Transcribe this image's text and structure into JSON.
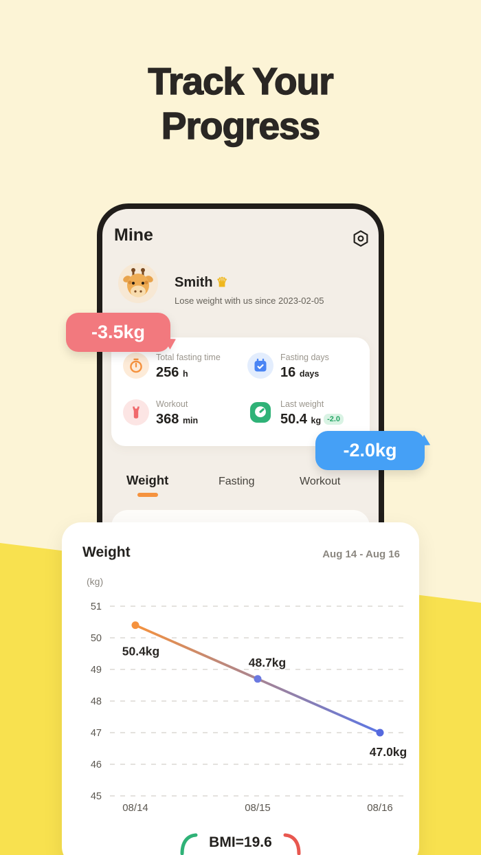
{
  "hero": {
    "title_line1": "Track Your",
    "title_line2": "Progress"
  },
  "phone": {
    "header": {
      "title": "Mine"
    },
    "profile": {
      "name": "Smith",
      "crown": "♛",
      "subtitle": "Lose weight with us since 2023-02-05"
    },
    "stats": [
      {
        "label": "Total fasting time",
        "value": "256",
        "unit": "h"
      },
      {
        "label": "Fasting days",
        "value": "16",
        "unit": "days"
      },
      {
        "label": "Workout",
        "value": "368",
        "unit": "min"
      },
      {
        "label": "Last weight",
        "value": "50.4",
        "unit": "kg",
        "badge": "-2.0"
      }
    ],
    "tabs": [
      {
        "label": "Weight",
        "active": true
      },
      {
        "label": "Fasting",
        "active": false
      },
      {
        "label": "Workout",
        "active": false
      }
    ]
  },
  "callouts": {
    "left": "-3.5kg",
    "right": "-2.0kg"
  },
  "chart_card": {
    "title": "Weight",
    "date_range": "Aug 14 - Aug 16",
    "bmi": "BMI=19.6"
  },
  "chart_data": {
    "type": "line",
    "title": "Weight",
    "subtitle": "Aug 14 - Aug 16",
    "ylabel": "(kg)",
    "x": [
      "08/14",
      "08/15",
      "08/16"
    ],
    "values": [
      50.4,
      48.7,
      47.0
    ],
    "point_labels": [
      "50.4kg",
      "48.7kg",
      "47.0kg"
    ],
    "point_colors": [
      "#F5923E",
      "#6B79E0",
      "#5569DE"
    ],
    "yticks": [
      51,
      50,
      49,
      48,
      47,
      46,
      45
    ],
    "ylim": [
      45,
      51
    ],
    "grid": "dashed-horizontal",
    "legend": "none",
    "line_gradient": [
      "#F5923E",
      "#5B76E5"
    ]
  },
  "colors": {
    "bg_top": "#FCF4D6",
    "bg_bottom": "#F8E14F",
    "accent_orange": "#F5923E",
    "bubble_pink": "#F2797E",
    "bubble_blue": "#45A0F6",
    "green": "#2FB277",
    "red": "#E8574F",
    "text_dark": "#23211E"
  }
}
